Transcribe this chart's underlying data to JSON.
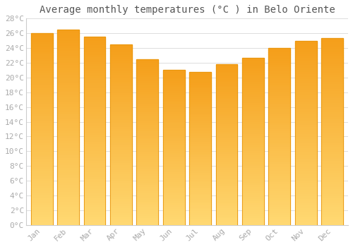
{
  "title": "Average monthly temperatures (°C ) in Belo Oriente",
  "months": [
    "Jan",
    "Feb",
    "Mar",
    "Apr",
    "May",
    "Jun",
    "Jul",
    "Aug",
    "Sep",
    "Oct",
    "Nov",
    "Dec"
  ],
  "values": [
    26.0,
    26.5,
    25.5,
    24.5,
    22.5,
    21.0,
    20.8,
    21.8,
    22.7,
    24.0,
    25.0,
    25.3
  ],
  "bar_color_top": "#F5A623",
  "bar_color_bottom": "#FFD070",
  "bar_edge_color": "#E8950A",
  "ylim": [
    0,
    28
  ],
  "ytick_step": 2,
  "background_color": "#ffffff",
  "grid_color": "#dddddd",
  "title_fontsize": 10,
  "tick_fontsize": 8,
  "font_family": "monospace"
}
